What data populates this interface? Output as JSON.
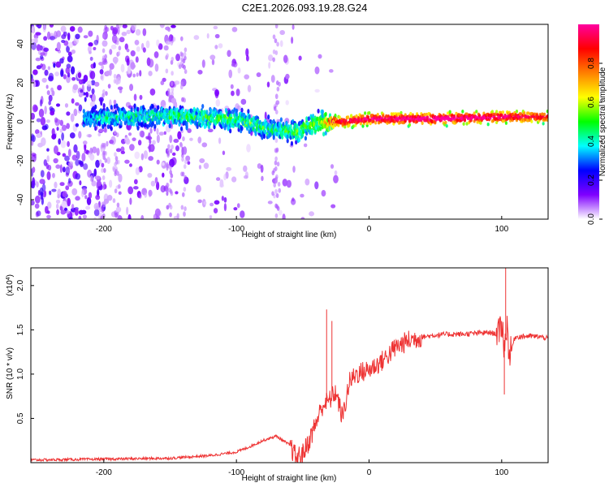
{
  "title": "C2E1.2026.093.19.28.G24",
  "chart_data": [
    {
      "type": "heatmap",
      "xlabel": "Height of straight line (km)",
      "ylabel": "Frequency (Hz)",
      "xlim": [
        -255,
        135
      ],
      "ylim": [
        -50,
        50
      ],
      "xticks": [
        -200,
        -100,
        0,
        100
      ],
      "yticks": [
        -40,
        -20,
        0,
        20,
        40
      ],
      "colorbar": {
        "label": "Normalized spectral amplitude",
        "range": [
          0,
          1
        ],
        "ticks": [
          "0.0",
          "0.2",
          "0.4",
          "0.6",
          "0.8"
        ],
        "colormap": [
          "#ffffff",
          "#7f00ff",
          "#0000ff",
          "#00ffff",
          "#00ff00",
          "#ffff00",
          "#ff8000",
          "#ff0000",
          "#ff00a0"
        ]
      },
      "ridge": {
        "description_points_x": [
          -255,
          -200,
          -150,
          -100,
          -75,
          -55,
          -40,
          -30,
          -20,
          0,
          50,
          100,
          135
        ],
        "frequency": [
          0,
          2,
          3,
          1,
          -4,
          -5,
          -1,
          0,
          0,
          1.5,
          1.5,
          2.5,
          2.5
        ],
        "peak_amplitude": [
          0.15,
          0.35,
          0.4,
          0.45,
          0.4,
          0.45,
          0.5,
          0.7,
          0.9,
          0.95,
          1.0,
          0.95,
          0.85
        ]
      }
    },
    {
      "type": "line",
      "xlabel": "Height of straight line (km)",
      "ylabel": "SNR (10 * v/v)",
      "yscale_label": "(x10",
      "yscale_exp": "4",
      "yscale_close": ")",
      "xlim": [
        -255,
        135
      ],
      "ylim": [
        0,
        2.2
      ],
      "xticks": [
        -200,
        -100,
        0,
        100
      ],
      "yticks": [
        "0.5",
        "1.0",
        "1.5",
        "2.0"
      ],
      "color": "#ee3333",
      "series": [
        {
          "x": [
            -255,
            -200,
            -150,
            -120,
            -100,
            -90,
            -80,
            -70,
            -60,
            -55,
            -50,
            -45,
            -40,
            -35,
            -30,
            -25,
            -20,
            -15,
            -10,
            0,
            10,
            20,
            30,
            40,
            50,
            60,
            70,
            80,
            90,
            98,
            100,
            102,
            104,
            106,
            110,
            120,
            130,
            135
          ],
          "y": [
            0.03,
            0.04,
            0.05,
            0.08,
            0.12,
            0.18,
            0.25,
            0.3,
            0.2,
            0.06,
            0.1,
            0.25,
            0.45,
            0.65,
            0.7,
            0.8,
            0.5,
            0.9,
            1.0,
            1.05,
            1.15,
            1.3,
            1.38,
            1.42,
            1.44,
            1.45,
            1.45,
            1.46,
            1.47,
            1.45,
            1.6,
            1.3,
            1.55,
            1.2,
            1.42,
            1.43,
            1.42,
            1.4
          ]
        }
      ],
      "spikes": [
        {
          "x": -32,
          "y": 1.73
        },
        {
          "x": -28,
          "y": 1.6
        },
        {
          "x": 103,
          "y": 2.2
        },
        {
          "x": 102,
          "y": 0.77
        }
      ]
    }
  ]
}
